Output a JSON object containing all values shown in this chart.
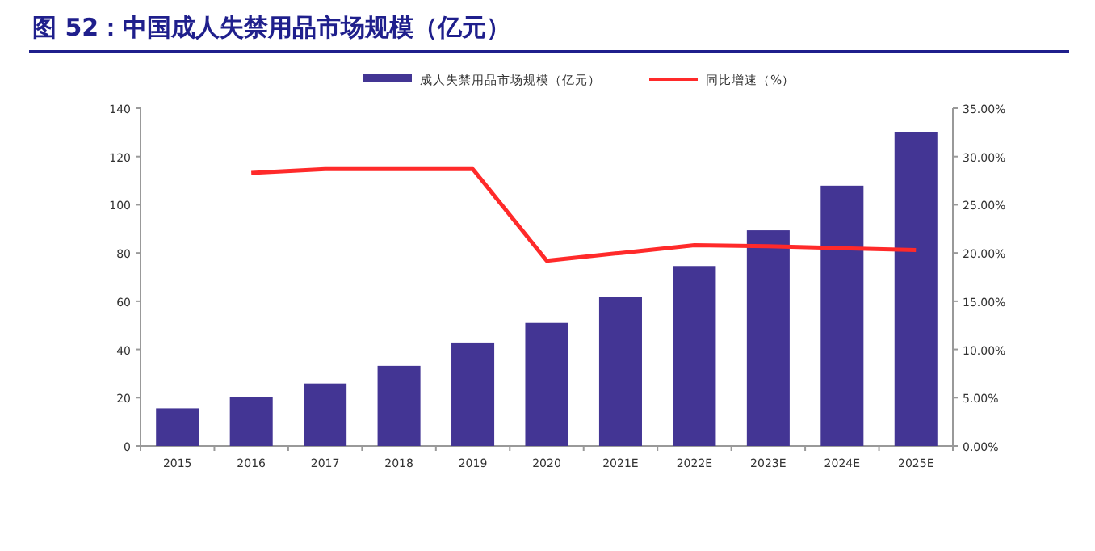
{
  "chart_data": {
    "type": "bar",
    "title": "图 52：中国成人失禁用品市场规模（亿元）",
    "categories": [
      "2015",
      "2016",
      "2017",
      "2018",
      "2019",
      "2020",
      "2021E",
      "2022E",
      "2023E",
      "2024E",
      "2025E"
    ],
    "series": [
      {
        "name": "成人失禁用品市场规模（亿元）",
        "color": "#433594",
        "values": [
          15.6,
          20.1,
          25.9,
          33.2,
          42.9,
          51.0,
          61.7,
          74.6,
          89.4,
          107.9,
          130.2
        ]
      },
      {
        "name": "同比增速（%）",
        "type": "line",
        "axis": "y2",
        "color": "#ff2a2a",
        "values": [
          null,
          28.3,
          28.7,
          28.7,
          28.7,
          19.2,
          20.0,
          20.8,
          20.7,
          20.5,
          20.3
        ]
      }
    ],
    "ylim": [
      0,
      140
    ],
    "yticks": [
      0,
      20,
      40,
      60,
      80,
      100,
      120,
      140
    ],
    "y2lim": [
      0,
      35
    ],
    "y2ticks": [
      {
        "value": 0,
        "label": "0.00%"
      },
      {
        "value": 5,
        "label": "5.00%"
      },
      {
        "value": 10,
        "label": "10.00%"
      },
      {
        "value": 15,
        "label": "15.00%"
      },
      {
        "value": 20,
        "label": "20.00%"
      },
      {
        "value": 25,
        "label": "25.00%"
      },
      {
        "value": 30,
        "label": "30.00%"
      },
      {
        "value": 35,
        "label": "35.00%"
      }
    ],
    "legend": "top",
    "grid": false
  }
}
